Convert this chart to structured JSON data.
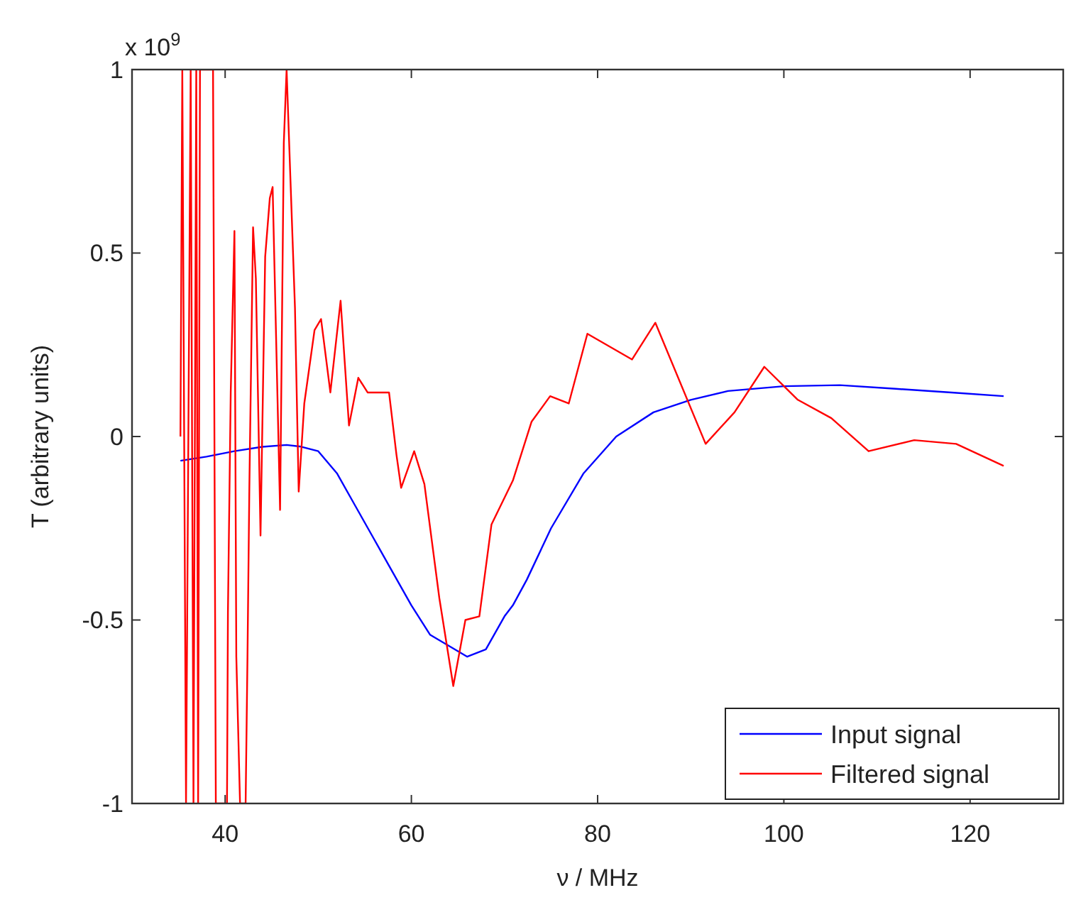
{
  "chart_data": {
    "type": "line",
    "xlabel": "ν / MHz",
    "ylabel": "T (arbitrary units)",
    "annotations": [
      "x 10$^{9}$"
    ],
    "xlim": [
      30,
      130
    ],
    "xticks": [
      40,
      60,
      80,
      100,
      120
    ],
    "ylim": [
      -1,
      1
    ],
    "yticks": [
      -1,
      -0.5,
      0,
      0.5,
      1
    ],
    "legend": "bottom right",
    "grid": false,
    "series": [
      {
        "name": "Input signal",
        "color": "#0000ff",
        "x": [
          35.2,
          38,
          41,
          44,
          46.6,
          48,
          50,
          52,
          54,
          56,
          58,
          60,
          62,
          64,
          66,
          68,
          70,
          70.9,
          72.4,
          75,
          78.5,
          82,
          86,
          90,
          94,
          100,
          106,
          112,
          118,
          123.6
        ],
        "values": [
          -0.066,
          -0.055,
          -0.04,
          -0.028,
          -0.023,
          -0.027,
          -0.04,
          -0.1,
          -0.19,
          -0.28,
          -0.37,
          -0.46,
          -0.54,
          -0.57,
          -0.6,
          -0.58,
          -0.49,
          -0.46,
          -0.39,
          -0.25,
          -0.1,
          0.0,
          0.066,
          0.1,
          0.124,
          0.137,
          0.14,
          0.13,
          0.12,
          0.11
        ]
      },
      {
        "name": "Filtered signal",
        "color": "#ff0000",
        "x": [
          35.2,
          35.4,
          35.8,
          36.3,
          36.6,
          36.9,
          37.1,
          37.3,
          38.7,
          39.0,
          40.2,
          40.3,
          40.6,
          41.0,
          41.2,
          41.6,
          42.2,
          42.4,
          42.6,
          43.0,
          43.3,
          43.8,
          44.3,
          44.8,
          45.1,
          45.9,
          46.3,
          46.6,
          47.0,
          47.5,
          47.9,
          48.5,
          49.6,
          50.3,
          51.3,
          52.4,
          53.3,
          54.3,
          55.3,
          57.6,
          58.4,
          58.9,
          60.3,
          61.4,
          63.0,
          64.5,
          65.8,
          67.3,
          68.6,
          70.9,
          72.9,
          74.9,
          76.9,
          78.9,
          83.7,
          86.2,
          91.6,
          94.7,
          97.9,
          101.5,
          105.1,
          109.1,
          114,
          118.5,
          123.6
        ],
        "values": [
          0,
          1,
          -1,
          1,
          -1,
          1,
          -1,
          1,
          1,
          -1,
          -1,
          -0.48,
          0.12,
          0.56,
          -0.6,
          -1,
          -1,
          -0.6,
          -0.14,
          0.57,
          0.43,
          -0.27,
          0.49,
          0.65,
          0.68,
          -0.2,
          0.8,
          1,
          0.71,
          0.35,
          -0.15,
          0.09,
          0.29,
          0.32,
          0.12,
          0.37,
          0.03,
          0.16,
          0.12,
          0.12,
          -0.05,
          -0.14,
          -0.04,
          -0.13,
          -0.44,
          -0.68,
          -0.5,
          -0.49,
          -0.24,
          -0.12,
          0.04,
          0.11,
          0.09,
          0.28,
          0.21,
          0.31,
          -0.02,
          0.066,
          0.19,
          0.1,
          0.05,
          -0.04,
          -0.01,
          -0.02,
          -0.08
        ]
      }
    ]
  }
}
